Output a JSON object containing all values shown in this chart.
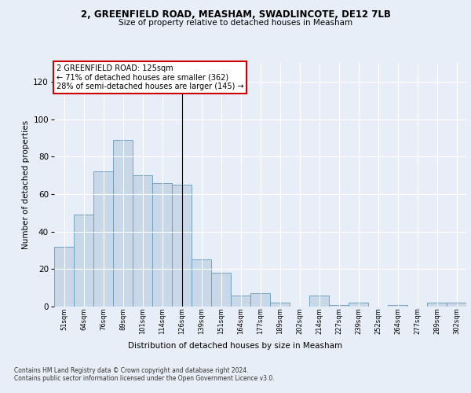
{
  "title1": "2, GREENFIELD ROAD, MEASHAM, SWADLINCOTE, DE12 7LB",
  "title2": "Size of property relative to detached houses in Measham",
  "xlabel": "Distribution of detached houses by size in Measham",
  "ylabel": "Number of detached properties",
  "bar_color": "#c8d8e8",
  "bar_edge_color": "#6699bb",
  "categories": [
    "51sqm",
    "64sqm",
    "76sqm",
    "89sqm",
    "101sqm",
    "114sqm",
    "126sqm",
    "139sqm",
    "151sqm",
    "164sqm",
    "177sqm",
    "189sqm",
    "202sqm",
    "214sqm",
    "227sqm",
    "239sqm",
    "252sqm",
    "264sqm",
    "277sqm",
    "289sqm",
    "302sqm"
  ],
  "values": [
    32,
    49,
    72,
    89,
    70,
    66,
    65,
    25,
    18,
    6,
    7,
    2,
    0,
    6,
    1,
    2,
    0,
    1,
    0,
    2,
    2
  ],
  "ylim": [
    0,
    130
  ],
  "yticks": [
    0,
    20,
    40,
    60,
    80,
    100,
    120
  ],
  "annotation_line1": "2 GREENFIELD ROAD: 125sqm",
  "annotation_line2": "← 71% of detached houses are smaller (362)",
  "annotation_line3": "28% of semi-detached houses are larger (145) →",
  "vline_bar_index": 6,
  "footer1": "Contains HM Land Registry data © Crown copyright and database right 2024.",
  "footer2": "Contains public sector information licensed under the Open Government Licence v3.0.",
  "background_color": "#e8eef8",
  "plot_bg_color": "#e8eef8",
  "grid_color": "#ffffff",
  "annotation_box_color": "#ffffff",
  "annotation_box_edge": "#cc0000"
}
